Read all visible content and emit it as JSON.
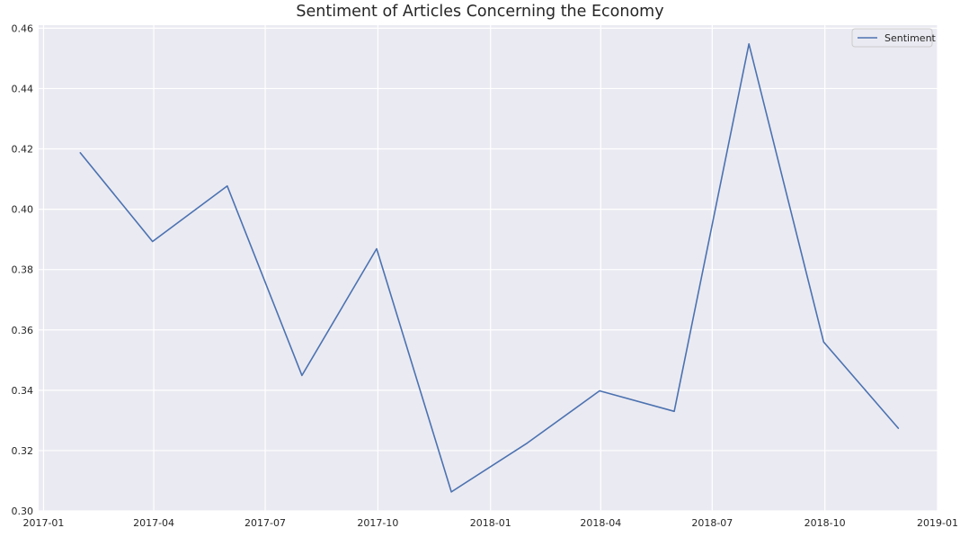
{
  "chart_data": {
    "type": "line",
    "title": "Sentiment of Articles Concerning the Economy",
    "xlabel": "",
    "ylabel": "",
    "x_axis_type": "date",
    "xlim": [
      "2016-12-28",
      "2019-01-01"
    ],
    "ylim": [
      0.3,
      0.461
    ],
    "x_ticks": [
      {
        "date": "2017-01-01",
        "label": "2017-01"
      },
      {
        "date": "2017-04-01",
        "label": "2017-04"
      },
      {
        "date": "2017-07-01",
        "label": "2017-07"
      },
      {
        "date": "2017-10-01",
        "label": "2017-10"
      },
      {
        "date": "2018-01-01",
        "label": "2018-01"
      },
      {
        "date": "2018-04-01",
        "label": "2018-04"
      },
      {
        "date": "2018-07-01",
        "label": "2018-07"
      },
      {
        "date": "2018-10-01",
        "label": "2018-10"
      },
      {
        "date": "2019-01-01",
        "label": "2019-01"
      }
    ],
    "y_ticks": [
      {
        "value": 0.3,
        "label": "0.30"
      },
      {
        "value": 0.32,
        "label": "0.32"
      },
      {
        "value": 0.34,
        "label": "0.34"
      },
      {
        "value": 0.36,
        "label": "0.36"
      },
      {
        "value": 0.38,
        "label": "0.38"
      },
      {
        "value": 0.4,
        "label": "0.40"
      },
      {
        "value": 0.42,
        "label": "0.42"
      },
      {
        "value": 0.44,
        "label": "0.44"
      },
      {
        "value": 0.46,
        "label": "0.46"
      }
    ],
    "series": [
      {
        "name": "Sentiment",
        "color": "#4c72b0",
        "points": [
          {
            "x": "2017-01-31",
            "y": 0.4187
          },
          {
            "x": "2017-03-31",
            "y": 0.3893
          },
          {
            "x": "2017-05-31",
            "y": 0.4077
          },
          {
            "x": "2017-07-31",
            "y": 0.3449
          },
          {
            "x": "2017-09-30",
            "y": 0.3869
          },
          {
            "x": "2017-11-30",
            "y": 0.3063
          },
          {
            "x": "2018-01-31",
            "y": 0.3225
          },
          {
            "x": "2018-03-31",
            "y": 0.3398
          },
          {
            "x": "2018-05-31",
            "y": 0.333
          },
          {
            "x": "2018-07-31",
            "y": 0.4548
          },
          {
            "x": "2018-09-30",
            "y": 0.356
          },
          {
            "x": "2018-11-30",
            "y": 0.3274
          }
        ]
      }
    ],
    "grid": true,
    "legend_position": "top-right",
    "background_color": "#eaeaf2",
    "grid_color": "#ffffff"
  }
}
